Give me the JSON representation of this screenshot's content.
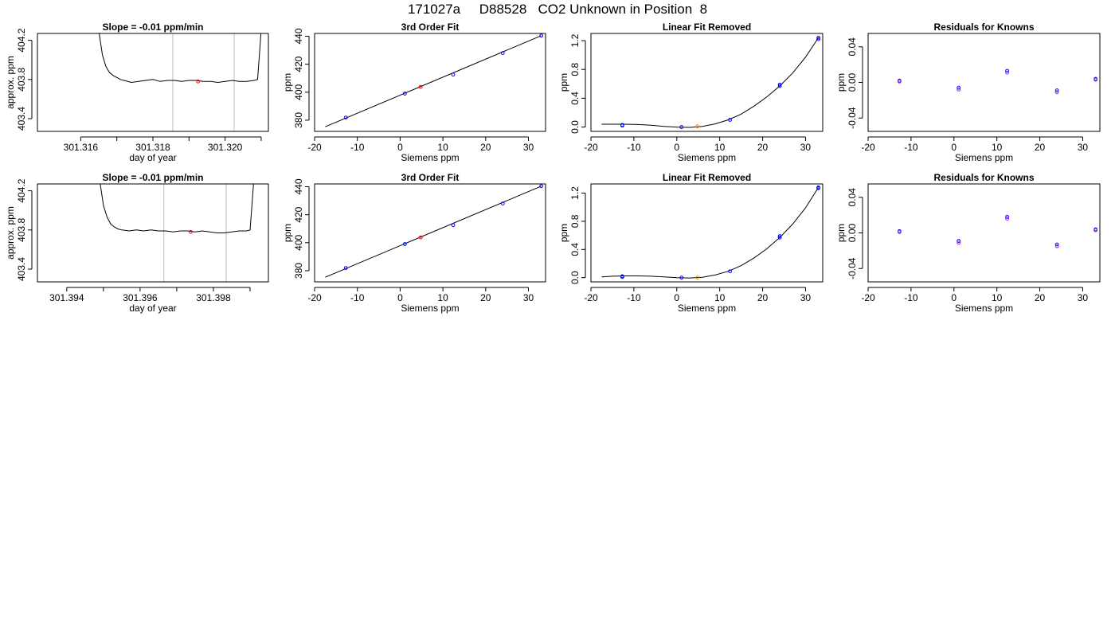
{
  "page_title": "171027a     D88528   CO2 Unknown in Position  8",
  "colors": {
    "line": "#000000",
    "grid_vertical": "#bebebe",
    "known_point": "#0000ff",
    "unknown_point_fit": "#ff0000",
    "unknown_point_linear": "#ff8c00",
    "residual_point_a": "#0000ff",
    "residual_point_b": "#a020f0"
  },
  "chart_data": [
    {
      "type": "line",
      "title": "Slope =  -0.01  ppm/min",
      "xlabel": "day of year",
      "ylabel": "approx. ppm",
      "xlim": [
        301.3148,
        301.3212
      ],
      "ylim": [
        403.27,
        404.27
      ],
      "xticks": [
        301.316,
        301.317,
        301.318,
        301.319,
        301.32,
        301.321
      ],
      "xtick_labels": [
        "301.316",
        "",
        "301.318",
        "",
        "301.320",
        ""
      ],
      "yticks": [
        403.4,
        403.8,
        404.2
      ],
      "ytick_labels": [
        "403.4",
        "403.8",
        "404.2"
      ],
      "vlines": [
        301.31855,
        301.32025
      ],
      "x": [
        301.3165,
        301.3166,
        301.3167,
        301.3168,
        301.3169,
        301.317,
        301.3171,
        301.3172,
        301.3174,
        301.3176,
        301.3178,
        301.318,
        301.3182,
        301.3184,
        301.3186,
        301.3188,
        301.319,
        301.3192,
        301.3194,
        301.3196,
        301.3198,
        301.32,
        301.3202,
        301.3204,
        301.3206,
        301.3208,
        301.3209,
        301.32095,
        301.321
      ],
      "y": [
        404.3,
        404.05,
        403.93,
        403.87,
        403.84,
        403.82,
        403.8,
        403.79,
        403.77,
        403.78,
        403.79,
        403.8,
        403.78,
        403.79,
        403.79,
        403.78,
        403.79,
        403.79,
        403.78,
        403.78,
        403.77,
        403.78,
        403.79,
        403.78,
        403.78,
        403.79,
        403.8,
        404.05,
        404.3
      ],
      "marker": {
        "x": 301.31925,
        "y": 403.78
      }
    },
    {
      "type": "scatter",
      "title": "3rd Order Fit",
      "xlabel": "Siemens ppm",
      "ylabel": "ppm",
      "xlim": [
        -20,
        34
      ],
      "ylim": [
        372,
        442
      ],
      "xticks": [
        -20,
        -10,
        0,
        10,
        20,
        30
      ],
      "yticks": [
        380,
        400,
        420,
        440
      ],
      "ytick_labels": [
        "380",
        "400",
        "420",
        "440"
      ],
      "known_x": [
        -12.7,
        1.1,
        12.4,
        24.0,
        33.0
      ],
      "known_y": [
        381.9,
        399.0,
        412.6,
        428.0,
        440.4
      ],
      "unknown": {
        "x": 4.8,
        "y": 403.8
      },
      "fit_line": {
        "x": [
          -17.5,
          33.0
        ],
        "y": [
          375.3,
          440.4
        ]
      }
    },
    {
      "type": "scatter",
      "title": "Linear Fit Removed",
      "xlabel": "Siemens ppm",
      "ylabel": "ppm",
      "xlim": [
        -20,
        34
      ],
      "ylim": [
        -0.06,
        1.3
      ],
      "xticks": [
        -20,
        -10,
        0,
        10,
        20,
        30
      ],
      "yticks": [
        0.0,
        0.4,
        0.8,
        1.2
      ],
      "ytick_labels": [
        "0.0",
        "0.4",
        "0.8",
        "1.2"
      ],
      "known_x": [
        -12.7,
        -12.7,
        1.1,
        12.4,
        24.0,
        24.0,
        33.0,
        33.0
      ],
      "known_y": [
        0.03,
        0.02,
        0.0,
        0.1,
        0.57,
        0.59,
        1.22,
        1.24
      ],
      "unknown": {
        "x": 4.8,
        "y": 0.01
      },
      "curve": {
        "x": [
          -17.5,
          -15,
          -12,
          -9,
          -6,
          -3,
          0,
          3,
          6,
          9,
          12,
          15,
          18,
          21,
          24,
          27,
          30,
          33
        ],
        "y": [
          0.04,
          0.04,
          0.04,
          0.035,
          0.025,
          0.01,
          0.0,
          -0.005,
          0.01,
          0.045,
          0.1,
          0.18,
          0.29,
          0.42,
          0.57,
          0.75,
          0.97,
          1.24
        ]
      }
    },
    {
      "type": "scatter",
      "title": "Residuals for Knowns",
      "xlabel": "Siemens ppm",
      "ylabel": "ppm",
      "xlim": [
        -20,
        34
      ],
      "ylim": [
        -0.055,
        0.055
      ],
      "xticks": [
        -20,
        -10,
        0,
        10,
        20,
        30
      ],
      "yticks": [
        -0.04,
        0.0,
        0.04
      ],
      "ytick_labels": [
        "-0.04",
        "0.00",
        "0.04"
      ],
      "series": [
        {
          "x": [
            -12.7,
            1.1,
            12.4,
            24.0,
            33.0
          ],
          "y": [
            0.002,
            -0.006,
            0.013,
            -0.009,
            0.004
          ]
        },
        {
          "x": [
            -12.7,
            1.1,
            12.4,
            24.0,
            33.0
          ],
          "y": [
            0.001,
            -0.008,
            0.011,
            -0.011,
            0.003
          ]
        }
      ]
    },
    {
      "type": "line",
      "title": "Slope =  -0.01  ppm/min",
      "xlabel": "day of year",
      "ylabel": "approx. ppm",
      "xlim": [
        301.3932,
        301.3995
      ],
      "ylim": [
        403.27,
        404.27
      ],
      "xticks": [
        301.394,
        301.395,
        301.396,
        301.397,
        301.398,
        301.399
      ],
      "xtick_labels": [
        "301.394",
        "",
        "301.396",
        "",
        "301.398",
        ""
      ],
      "yticks": [
        403.4,
        403.8,
        404.2
      ],
      "ytick_labels": [
        "403.4",
        "403.8",
        "404.2"
      ],
      "vlines": [
        301.39665,
        301.39835
      ],
      "x": [
        301.3949,
        301.395,
        301.3951,
        301.3952,
        301.3953,
        301.3954,
        301.3955,
        301.3957,
        301.3959,
        301.3961,
        301.3963,
        301.3965,
        301.3967,
        301.3969,
        301.3971,
        301.3973,
        301.3975,
        301.3977,
        301.3979,
        301.3981,
        301.3983,
        301.3985,
        301.3987,
        301.3989,
        301.399,
        301.39905,
        301.3991
      ],
      "y": [
        404.3,
        404.05,
        403.93,
        403.86,
        403.83,
        403.81,
        403.8,
        403.79,
        403.8,
        403.79,
        403.8,
        403.79,
        403.79,
        403.78,
        403.79,
        403.79,
        403.78,
        403.79,
        403.78,
        403.77,
        403.77,
        403.78,
        403.79,
        403.79,
        403.8,
        404.05,
        404.3
      ],
      "marker": {
        "x": 301.39738,
        "y": 403.78
      }
    },
    {
      "type": "scatter",
      "title": "3rd Order Fit",
      "xlabel": "Siemens ppm",
      "ylabel": "ppm",
      "xlim": [
        -20,
        34
      ],
      "ylim": [
        372,
        442
      ],
      "xticks": [
        -20,
        -10,
        0,
        10,
        20,
        30
      ],
      "yticks": [
        380,
        400,
        420,
        440
      ],
      "ytick_labels": [
        "380",
        "400",
        "420",
        "440"
      ],
      "known_x": [
        -12.7,
        1.1,
        12.4,
        24.0,
        33.0
      ],
      "known_y": [
        381.9,
        399.0,
        412.6,
        428.0,
        440.4
      ],
      "unknown": {
        "x": 4.8,
        "y": 403.8
      },
      "fit_line": {
        "x": [
          -17.5,
          33.0
        ],
        "y": [
          375.3,
          440.4
        ]
      }
    },
    {
      "type": "scatter",
      "title": "Linear Fit Removed",
      "xlabel": "Siemens ppm",
      "ylabel": "ppm",
      "xlim": [
        -20,
        34
      ],
      "ylim": [
        -0.06,
        1.33
      ],
      "xticks": [
        -20,
        -10,
        0,
        10,
        20,
        30
      ],
      "yticks": [
        0.0,
        0.4,
        0.8,
        1.2
      ],
      "ytick_labels": [
        "0.0",
        "0.4",
        "0.8",
        "1.2"
      ],
      "known_x": [
        -12.7,
        -12.7,
        1.1,
        12.4,
        24.0,
        24.0,
        33.0,
        33.0
      ],
      "known_y": [
        0.02,
        0.01,
        0.0,
        0.09,
        0.57,
        0.59,
        1.27,
        1.28
      ],
      "unknown": {
        "x": 4.8,
        "y": 0.0
      },
      "curve": {
        "x": [
          -17.5,
          -15,
          -12,
          -9,
          -6,
          -3,
          0,
          3,
          6,
          9,
          12,
          15,
          18,
          21,
          24,
          27,
          30,
          33
        ],
        "y": [
          0.01,
          0.02,
          0.025,
          0.025,
          0.02,
          0.01,
          0.0,
          -0.005,
          0.005,
          0.04,
          0.09,
          0.17,
          0.28,
          0.41,
          0.57,
          0.76,
          0.99,
          1.28
        ]
      }
    },
    {
      "type": "scatter",
      "title": "Residuals for Knowns",
      "xlabel": "Siemens ppm",
      "ylabel": "ppm",
      "xlim": [
        -20,
        34
      ],
      "ylim": [
        -0.055,
        0.055
      ],
      "xticks": [
        -20,
        -10,
        0,
        10,
        20,
        30
      ],
      "yticks": [
        -0.04,
        0.0,
        0.04
      ],
      "ytick_labels": [
        "-0.04",
        "0.00",
        "0.04"
      ],
      "series": [
        {
          "x": [
            -12.7,
            1.1,
            12.4,
            24.0,
            33.0
          ],
          "y": [
            0.002,
            -0.009,
            0.018,
            -0.013,
            0.004
          ]
        },
        {
          "x": [
            -12.7,
            1.1,
            12.4,
            24.0,
            33.0
          ],
          "y": [
            0.001,
            -0.011,
            0.016,
            -0.015,
            0.003
          ]
        }
      ]
    }
  ]
}
